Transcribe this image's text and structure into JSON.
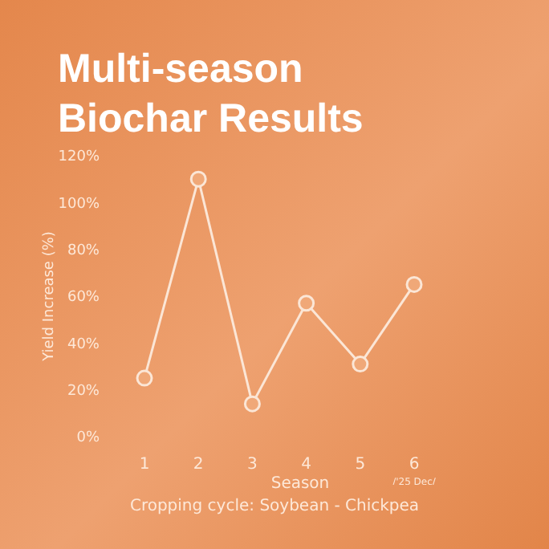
{
  "chart_data": {
    "type": "line",
    "title": "Multi-season Biochar Results",
    "xlabel": "Season",
    "ylabel": "Yield Increase (%)",
    "categories": [
      "1",
      "2",
      "3",
      "4",
      "5",
      "6"
    ],
    "series": [
      {
        "color": "#fbe6d6",
        "values": [
          25,
          110,
          14,
          57,
          31,
          65
        ]
      }
    ],
    "ylim": [
      0,
      120
    ],
    "yticks": [
      {
        "value": 0,
        "label": "0%"
      },
      {
        "value": 20,
        "label": "20%"
      },
      {
        "value": 40,
        "label": "40%"
      },
      {
        "value": 60,
        "label": "60%"
      },
      {
        "value": 80,
        "label": "80%"
      },
      {
        "value": 100,
        "label": "100%"
      },
      {
        "value": 120,
        "label": "120%"
      }
    ],
    "marker": "circle",
    "line_style": "solid",
    "annotations": [
      "/'25 Dec/",
      "Cropping cycle: Soybean - Chickpea"
    ]
  }
}
